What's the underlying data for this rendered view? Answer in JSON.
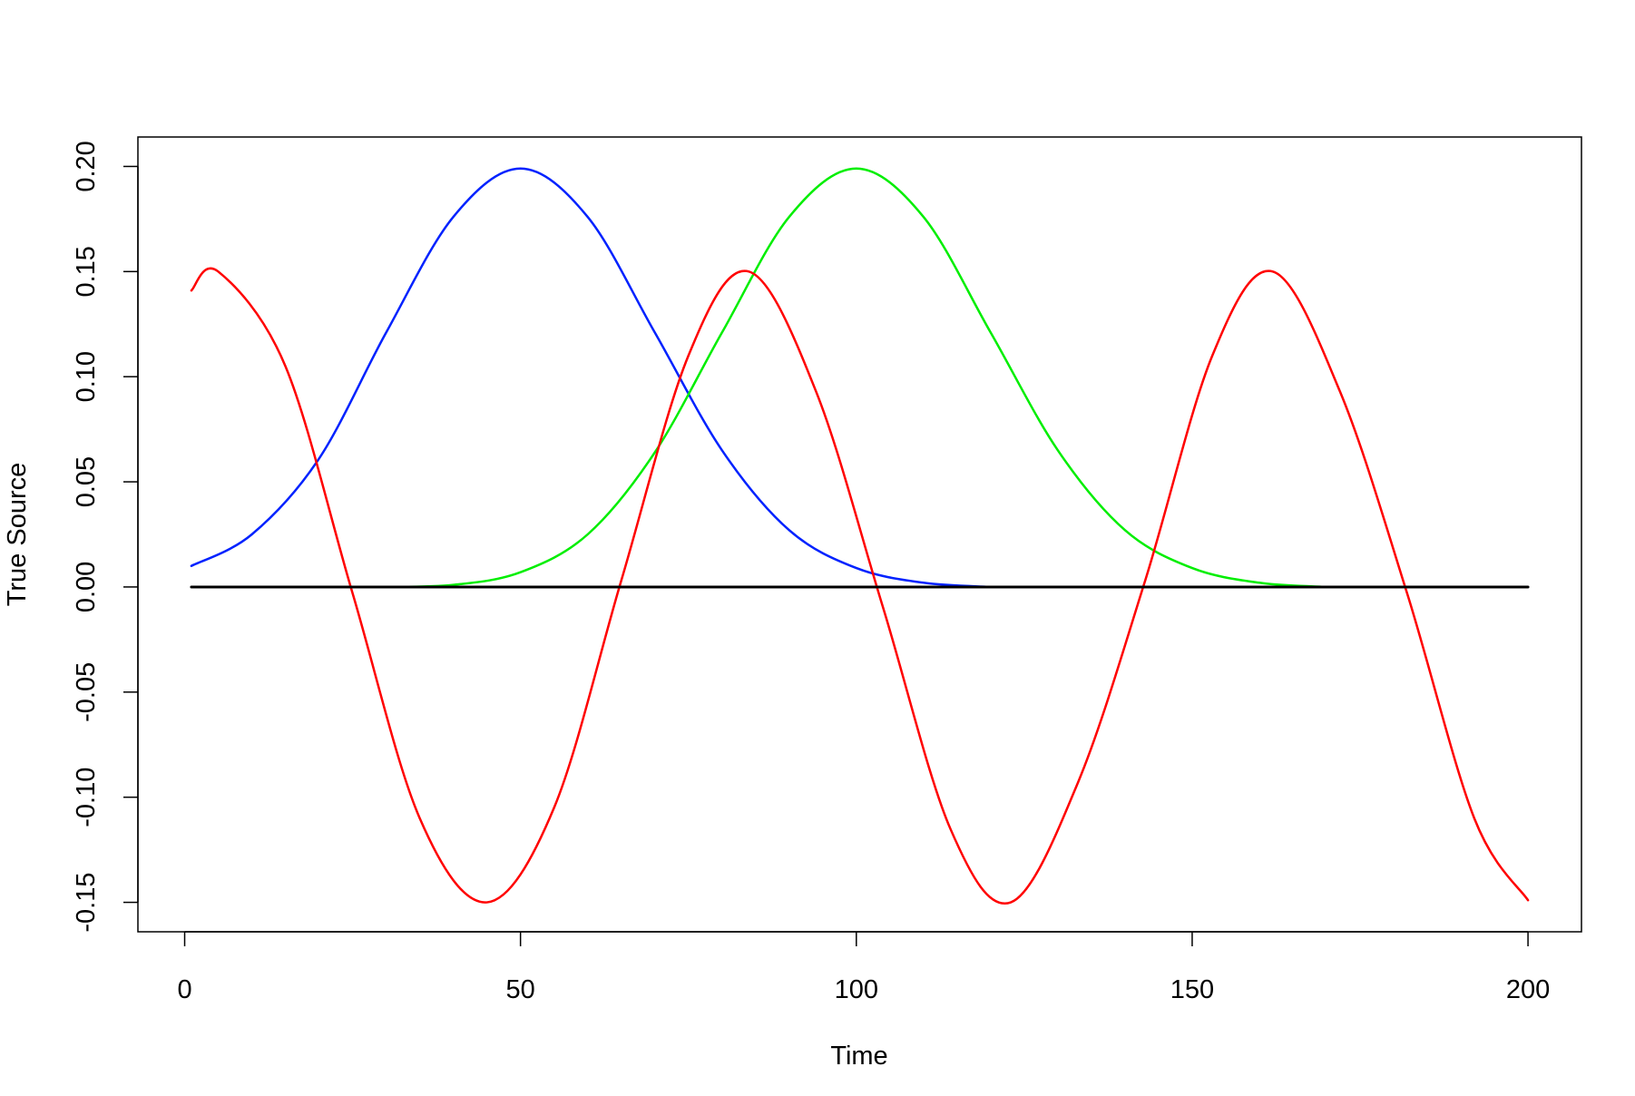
{
  "chart_data": {
    "type": "line",
    "title": "",
    "xlabel": "Time",
    "ylabel": "True Source",
    "xlim": [
      -6.96,
      207.96
    ],
    "ylim": [
      -0.164,
      0.214
    ],
    "x_ticks": [
      0,
      50,
      100,
      150,
      200
    ],
    "x_tick_labels": [
      "0",
      "50",
      "100",
      "150",
      "200"
    ],
    "y_ticks": [
      -0.15,
      -0.1,
      -0.05,
      0.0,
      0.05,
      0.1,
      0.15,
      0.2
    ],
    "y_tick_labels": [
      "-0.15",
      "-0.10",
      "-0.05",
      "0.00",
      "0.05",
      "0.10",
      "0.15",
      "0.20"
    ],
    "grid": false,
    "legend": "none",
    "series": [
      {
        "color": "#0022ff",
        "x": [
          1,
          10,
          20,
          30,
          40,
          50,
          60,
          70,
          80,
          90,
          100,
          110,
          120
        ],
        "y": [
          0.01,
          0.025,
          0.061,
          0.121,
          0.176,
          0.199,
          0.176,
          0.121,
          0.065,
          0.027,
          0.009,
          0.002,
          0.0
        ]
      },
      {
        "color": "#00ee00",
        "x": [
          30,
          40,
          50,
          60,
          70,
          80,
          90,
          100,
          110,
          120,
          130,
          140,
          150,
          160,
          170
        ],
        "y": [
          0.0,
          0.001,
          0.007,
          0.025,
          0.064,
          0.121,
          0.176,
          0.199,
          0.176,
          0.121,
          0.065,
          0.027,
          0.009,
          0.002,
          0.0
        ]
      },
      {
        "color": "#ff0000",
        "x": [
          1,
          5,
          15,
          25,
          35,
          45,
          55,
          65,
          75,
          84,
          94,
          104,
          114,
          123,
          133,
          143,
          153,
          162,
          172,
          182,
          192,
          200
        ],
        "y": [
          0.141,
          0.15,
          0.105,
          -0.003,
          -0.11,
          -0.15,
          -0.105,
          0.003,
          0.11,
          0.15,
          0.093,
          -0.01,
          -0.115,
          -0.15,
          -0.093,
          0.003,
          0.11,
          0.15,
          0.093,
          -0.003,
          -0.11,
          -0.149
        ]
      },
      {
        "color": "#000000",
        "x": [
          1,
          200
        ],
        "y": [
          0.0,
          0.0
        ]
      }
    ]
  }
}
